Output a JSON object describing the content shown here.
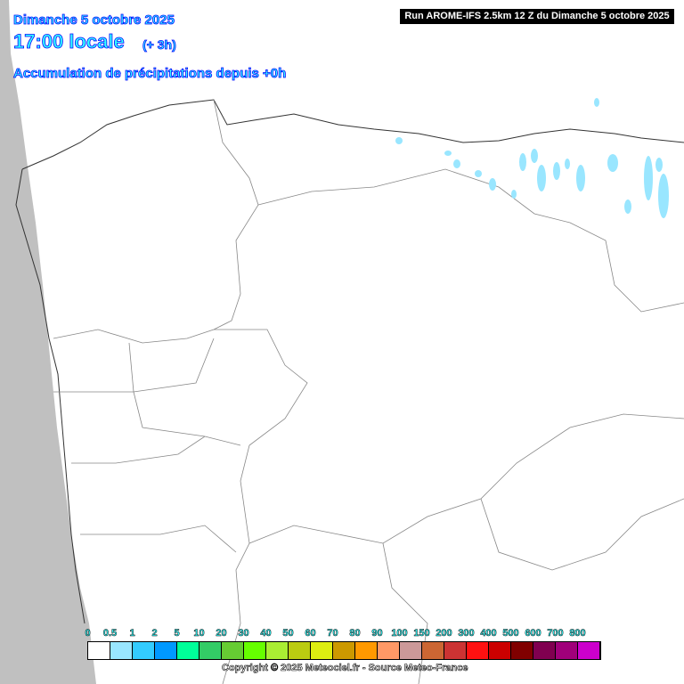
{
  "header": {
    "date": "Dimanche 5 octobre 2025",
    "time": "17:00 locale",
    "offset": "(+ 3h)",
    "product": "Accumulation de précipitations depuis +0h",
    "run": "Run AROME-IFS 2.5km 12 Z du Dimanche 5 octobre 2025"
  },
  "legend": {
    "labels": [
      "0",
      "0.5",
      "1",
      "2",
      "5",
      "10",
      "20",
      "30",
      "40",
      "50",
      "60",
      "70",
      "80",
      "90",
      "100",
      "150",
      "200",
      "300",
      "400",
      "500",
      "600",
      "700",
      "800"
    ],
    "colors": [
      "#ffffff",
      "#99e6ff",
      "#33ccff",
      "#0099ff",
      "#00ff99",
      "#33cc66",
      "#66cc33",
      "#66ff00",
      "#aaee33",
      "#bbcc11",
      "#ddee11",
      "#cc9900",
      "#ff9900",
      "#ff9966",
      "#cc9999",
      "#cc6633",
      "#cc3333",
      "#ff1111",
      "#cc0000",
      "#800000",
      "#800050",
      "#a0007a",
      "#cc00cc"
    ]
  },
  "copyright": "Copyright © 2025 Meteociel.fr - Source Meteo-France",
  "colors": {
    "ocean_mask": "#c0c0c0",
    "borders": "#666666",
    "precip": "#99e6ff"
  }
}
